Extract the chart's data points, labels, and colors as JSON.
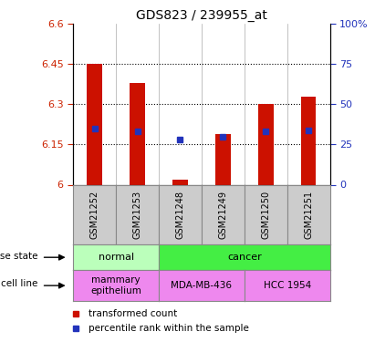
{
  "title": "GDS823 / 239955_at",
  "samples": [
    "GSM21252",
    "GSM21253",
    "GSM21248",
    "GSM21249",
    "GSM21250",
    "GSM21251"
  ],
  "transformed_counts": [
    6.45,
    6.38,
    6.02,
    6.19,
    6.3,
    6.33
  ],
  "percentile_ranks": [
    35,
    33,
    28,
    30,
    33,
    34
  ],
  "ylim_left": [
    6.0,
    6.6
  ],
  "ylim_right": [
    0,
    100
  ],
  "yticks_left": [
    6.0,
    6.15,
    6.3,
    6.45,
    6.6
  ],
  "yticks_right": [
    0,
    25,
    50,
    75,
    100
  ],
  "ytick_labels_left": [
    "6",
    "6.15",
    "6.3",
    "6.45",
    "6.6"
  ],
  "ytick_labels_right": [
    "0",
    "25",
    "50",
    "75",
    "100%"
  ],
  "hlines": [
    6.15,
    6.3,
    6.45
  ],
  "bar_color": "#cc1100",
  "dot_color": "#2233bb",
  "bar_width": 0.35,
  "disease_state_groups": [
    {
      "label": "normal",
      "cols": [
        0,
        1
      ],
      "color": "#bbffbb"
    },
    {
      "label": "cancer",
      "cols": [
        2,
        3,
        4,
        5
      ],
      "color": "#44ee44"
    }
  ],
  "cell_line_groups": [
    {
      "label": "mammary\nepithelium",
      "cols": [
        0,
        1
      ],
      "color": "#ee88ee"
    },
    {
      "label": "MDA-MB-436",
      "cols": [
        2,
        3
      ],
      "color": "#ee88ee"
    },
    {
      "label": "HCC 1954",
      "cols": [
        4,
        5
      ],
      "color": "#ee88ee"
    }
  ],
  "legend_items": [
    {
      "label": "transformed count",
      "color": "#cc1100"
    },
    {
      "label": "percentile rank within the sample",
      "color": "#2233bb"
    }
  ],
  "left_labels": [
    "disease state",
    "cell line"
  ],
  "tick_box_color": "#cccccc",
  "tick_label_color_left": "#cc2200",
  "tick_label_color_right": "#2233bb",
  "border_color": "#888888"
}
